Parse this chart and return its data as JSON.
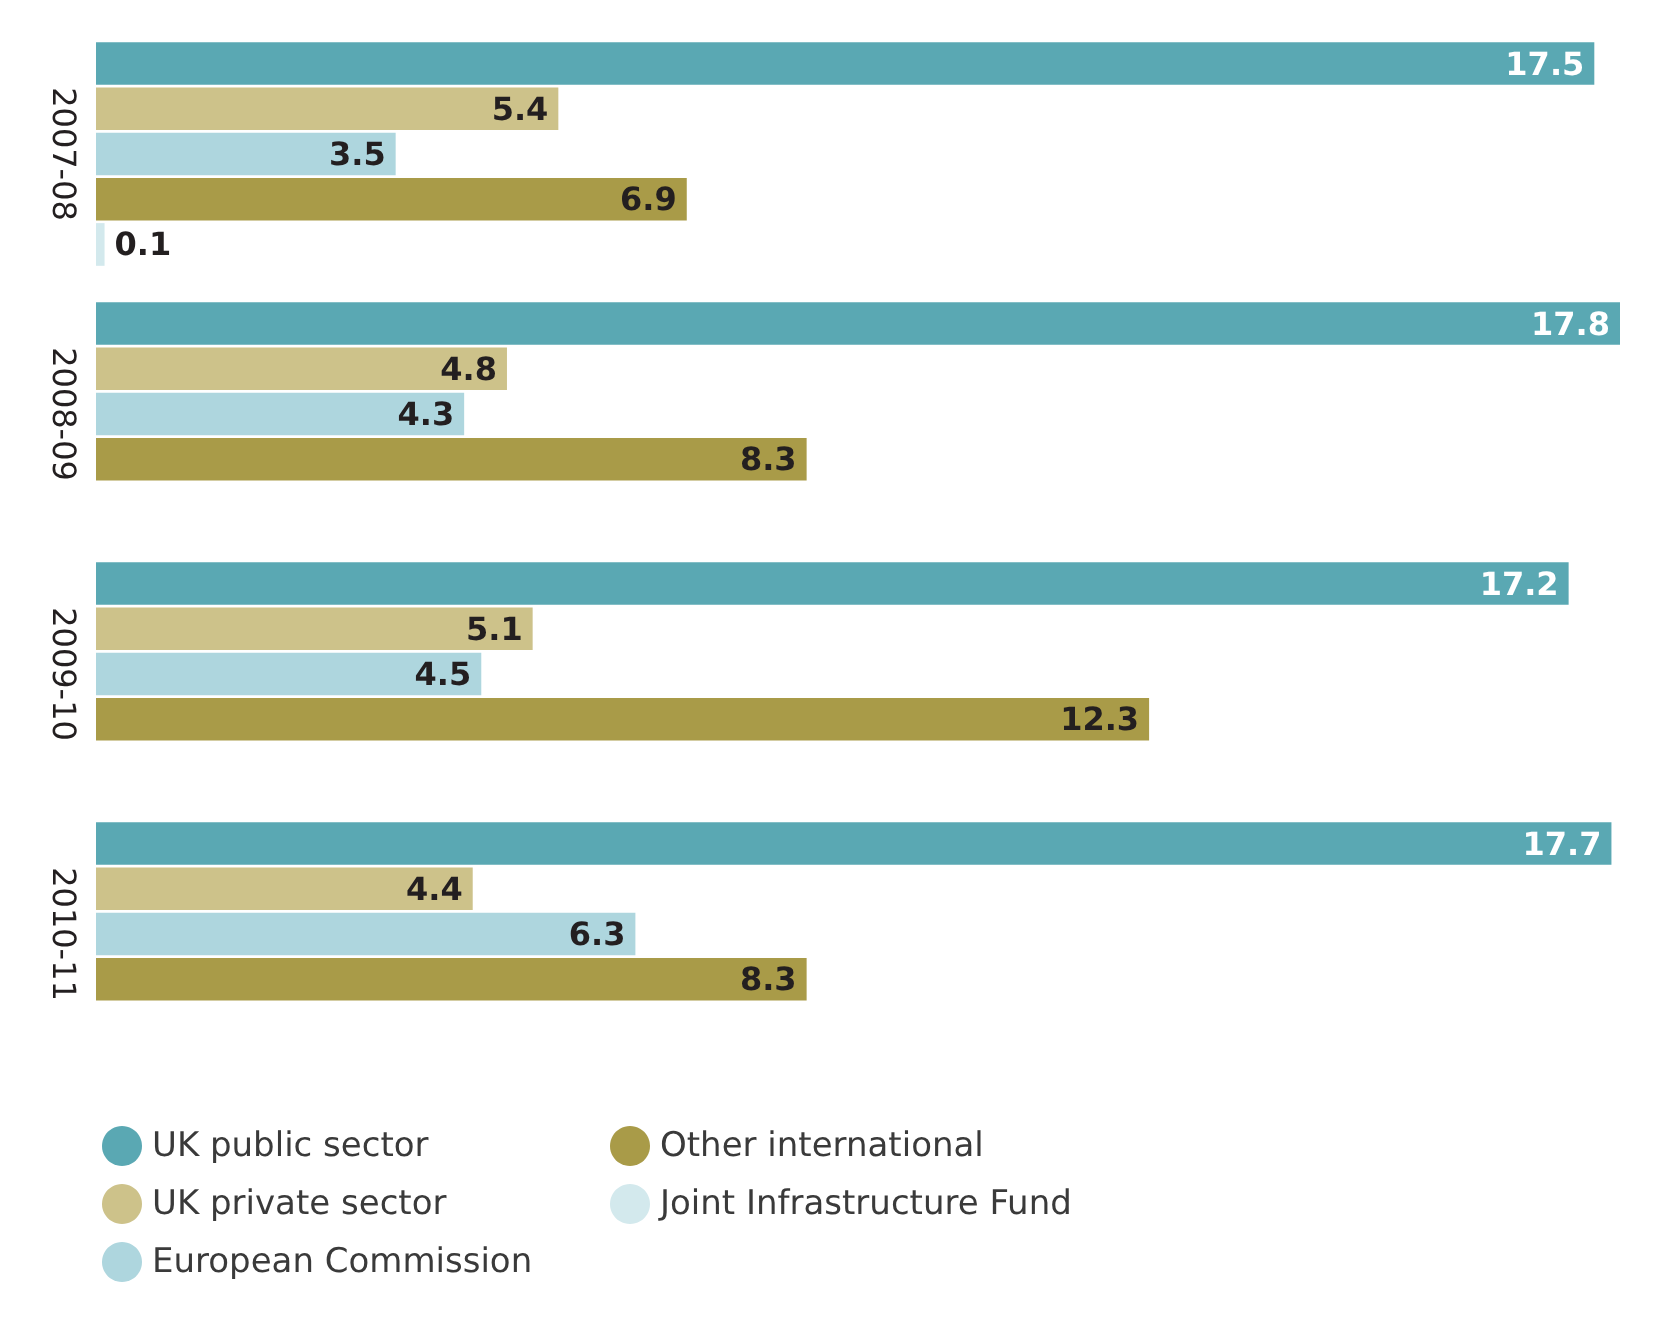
{
  "chart_data": {
    "type": "bar",
    "orientation": "horizontal",
    "categories": [
      "2007-08",
      "2008-09",
      "2009-10",
      "2010-11"
    ],
    "series": [
      {
        "name": "UK public sector",
        "color": "#5aa8b3",
        "values": [
          17.5,
          17.8,
          17.2,
          17.7
        ]
      },
      {
        "name": "UK private sector",
        "color": "#cdc28a",
        "values": [
          5.4,
          4.8,
          5.1,
          4.4
        ]
      },
      {
        "name": "European Commission",
        "color": "#aed6de",
        "values": [
          3.5,
          4.3,
          4.5,
          6.3
        ]
      },
      {
        "name": "Other international",
        "color": "#a99b48",
        "values": [
          6.9,
          8.3,
          12.3,
          8.3
        ]
      },
      {
        "name": "Joint Infrastructure Fund",
        "color": "#d3e9ed",
        "values": [
          0.1,
          null,
          null,
          null
        ]
      }
    ],
    "data_labels": true,
    "legend": "bottom"
  }
}
